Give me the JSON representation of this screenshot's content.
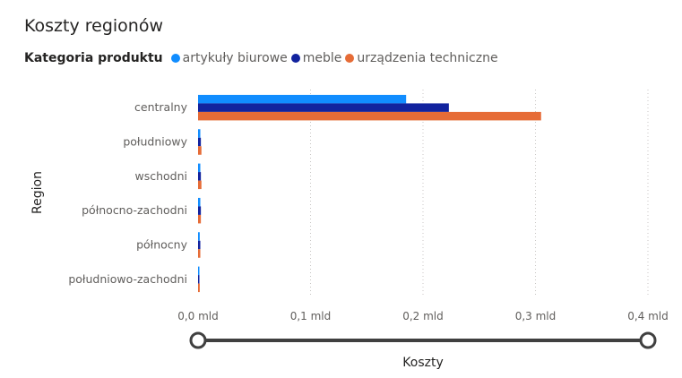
{
  "visual": {
    "title": "Koszty regionów",
    "legend_title": "Kategoria produktu"
  },
  "chart_data": {
    "type": "bar",
    "orientation": "horizontal",
    "title": "Koszty regionów",
    "xlabel": "Koszty",
    "ylabel": "Region",
    "categories": [
      "centralny",
      "południowy",
      "wschodni",
      "północno-zachodni",
      "północny",
      "południowo-zachodni"
    ],
    "series": [
      {
        "name": "artykuły biurowe",
        "color": "#118DFF",
        "values": [
          0.185,
          0.002,
          0.002,
          0.002,
          0.0015,
          0.001
        ]
      },
      {
        "name": "meble",
        "color": "#12239E",
        "values": [
          0.223,
          0.0025,
          0.0025,
          0.0025,
          0.002,
          0.0012
        ]
      },
      {
        "name": "urządzenia techniczne",
        "color": "#E66C37",
        "values": [
          0.305,
          0.003,
          0.003,
          0.0025,
          0.002,
          0.0015
        ]
      }
    ],
    "xlim": [
      0,
      0.4
    ],
    "xticks": [
      {
        "value": 0,
        "label": "0,0 mld"
      },
      {
        "value": 0.1,
        "label": "0,1 mld"
      },
      {
        "value": 0.2,
        "label": "0,2 mld"
      },
      {
        "value": 0.3,
        "label": "0,3 mld"
      },
      {
        "value": 0.4,
        "label": "0,4 mld"
      }
    ],
    "grid": true,
    "legend_position": "top-left",
    "zoom_slider": {
      "start": 0,
      "end": 1
    }
  }
}
